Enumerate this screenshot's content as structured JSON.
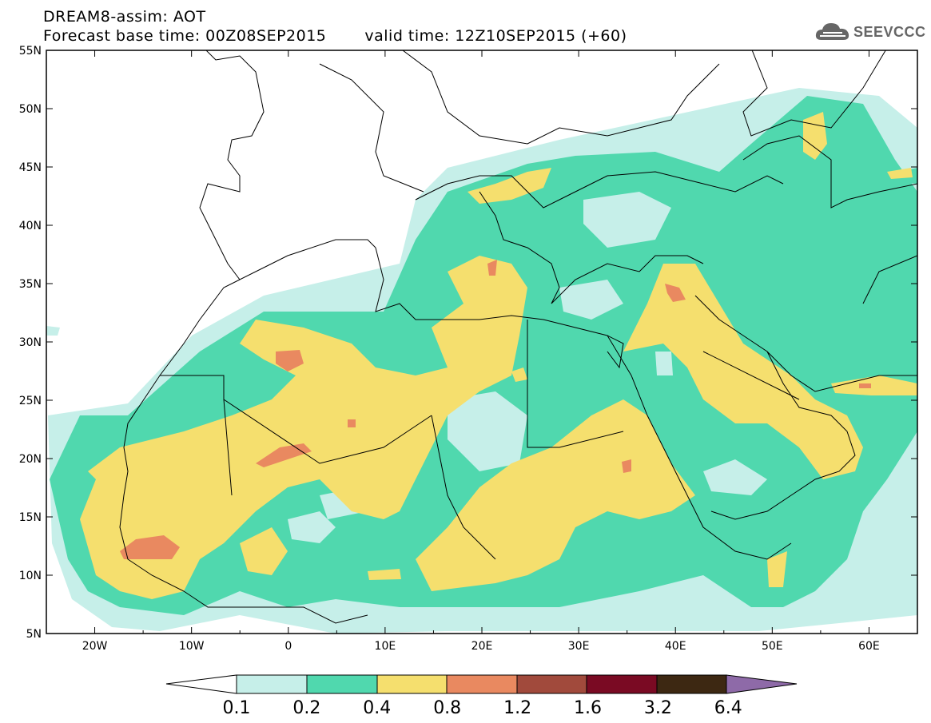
{
  "title": {
    "line1": "DREAM8-assim: AOT",
    "base_time": "Forecast base time: 00Z08SEP2015",
    "valid_time": "valid time: 12Z10SEP2015 (+60)"
  },
  "logo": {
    "text": "SEEVCCC",
    "icon": "cloud-icon"
  },
  "map": {
    "lon_range": [
      -25,
      65
    ],
    "lat_range": [
      5,
      55
    ],
    "lat_labels": [
      "5N",
      "10N",
      "15N",
      "20N",
      "25N",
      "30N",
      "35N",
      "40N",
      "45N",
      "50N",
      "55N"
    ],
    "lon_labels": [
      "20W",
      "10W",
      "0",
      "10E",
      "20E",
      "30E",
      "40E",
      "50E",
      "60E"
    ]
  },
  "colorbar": {
    "labels": [
      "0.1",
      "0.2",
      "0.4",
      "0.8",
      "1.2",
      "1.6",
      "3.2",
      "6.4"
    ],
    "colors": [
      "#ffffff",
      "#c6efe9",
      "#50d8ae",
      "#f5df6e",
      "#e98960",
      "#a14a3c",
      "#7a0a23",
      "#3d2812",
      "#8e6aa8"
    ]
  }
}
